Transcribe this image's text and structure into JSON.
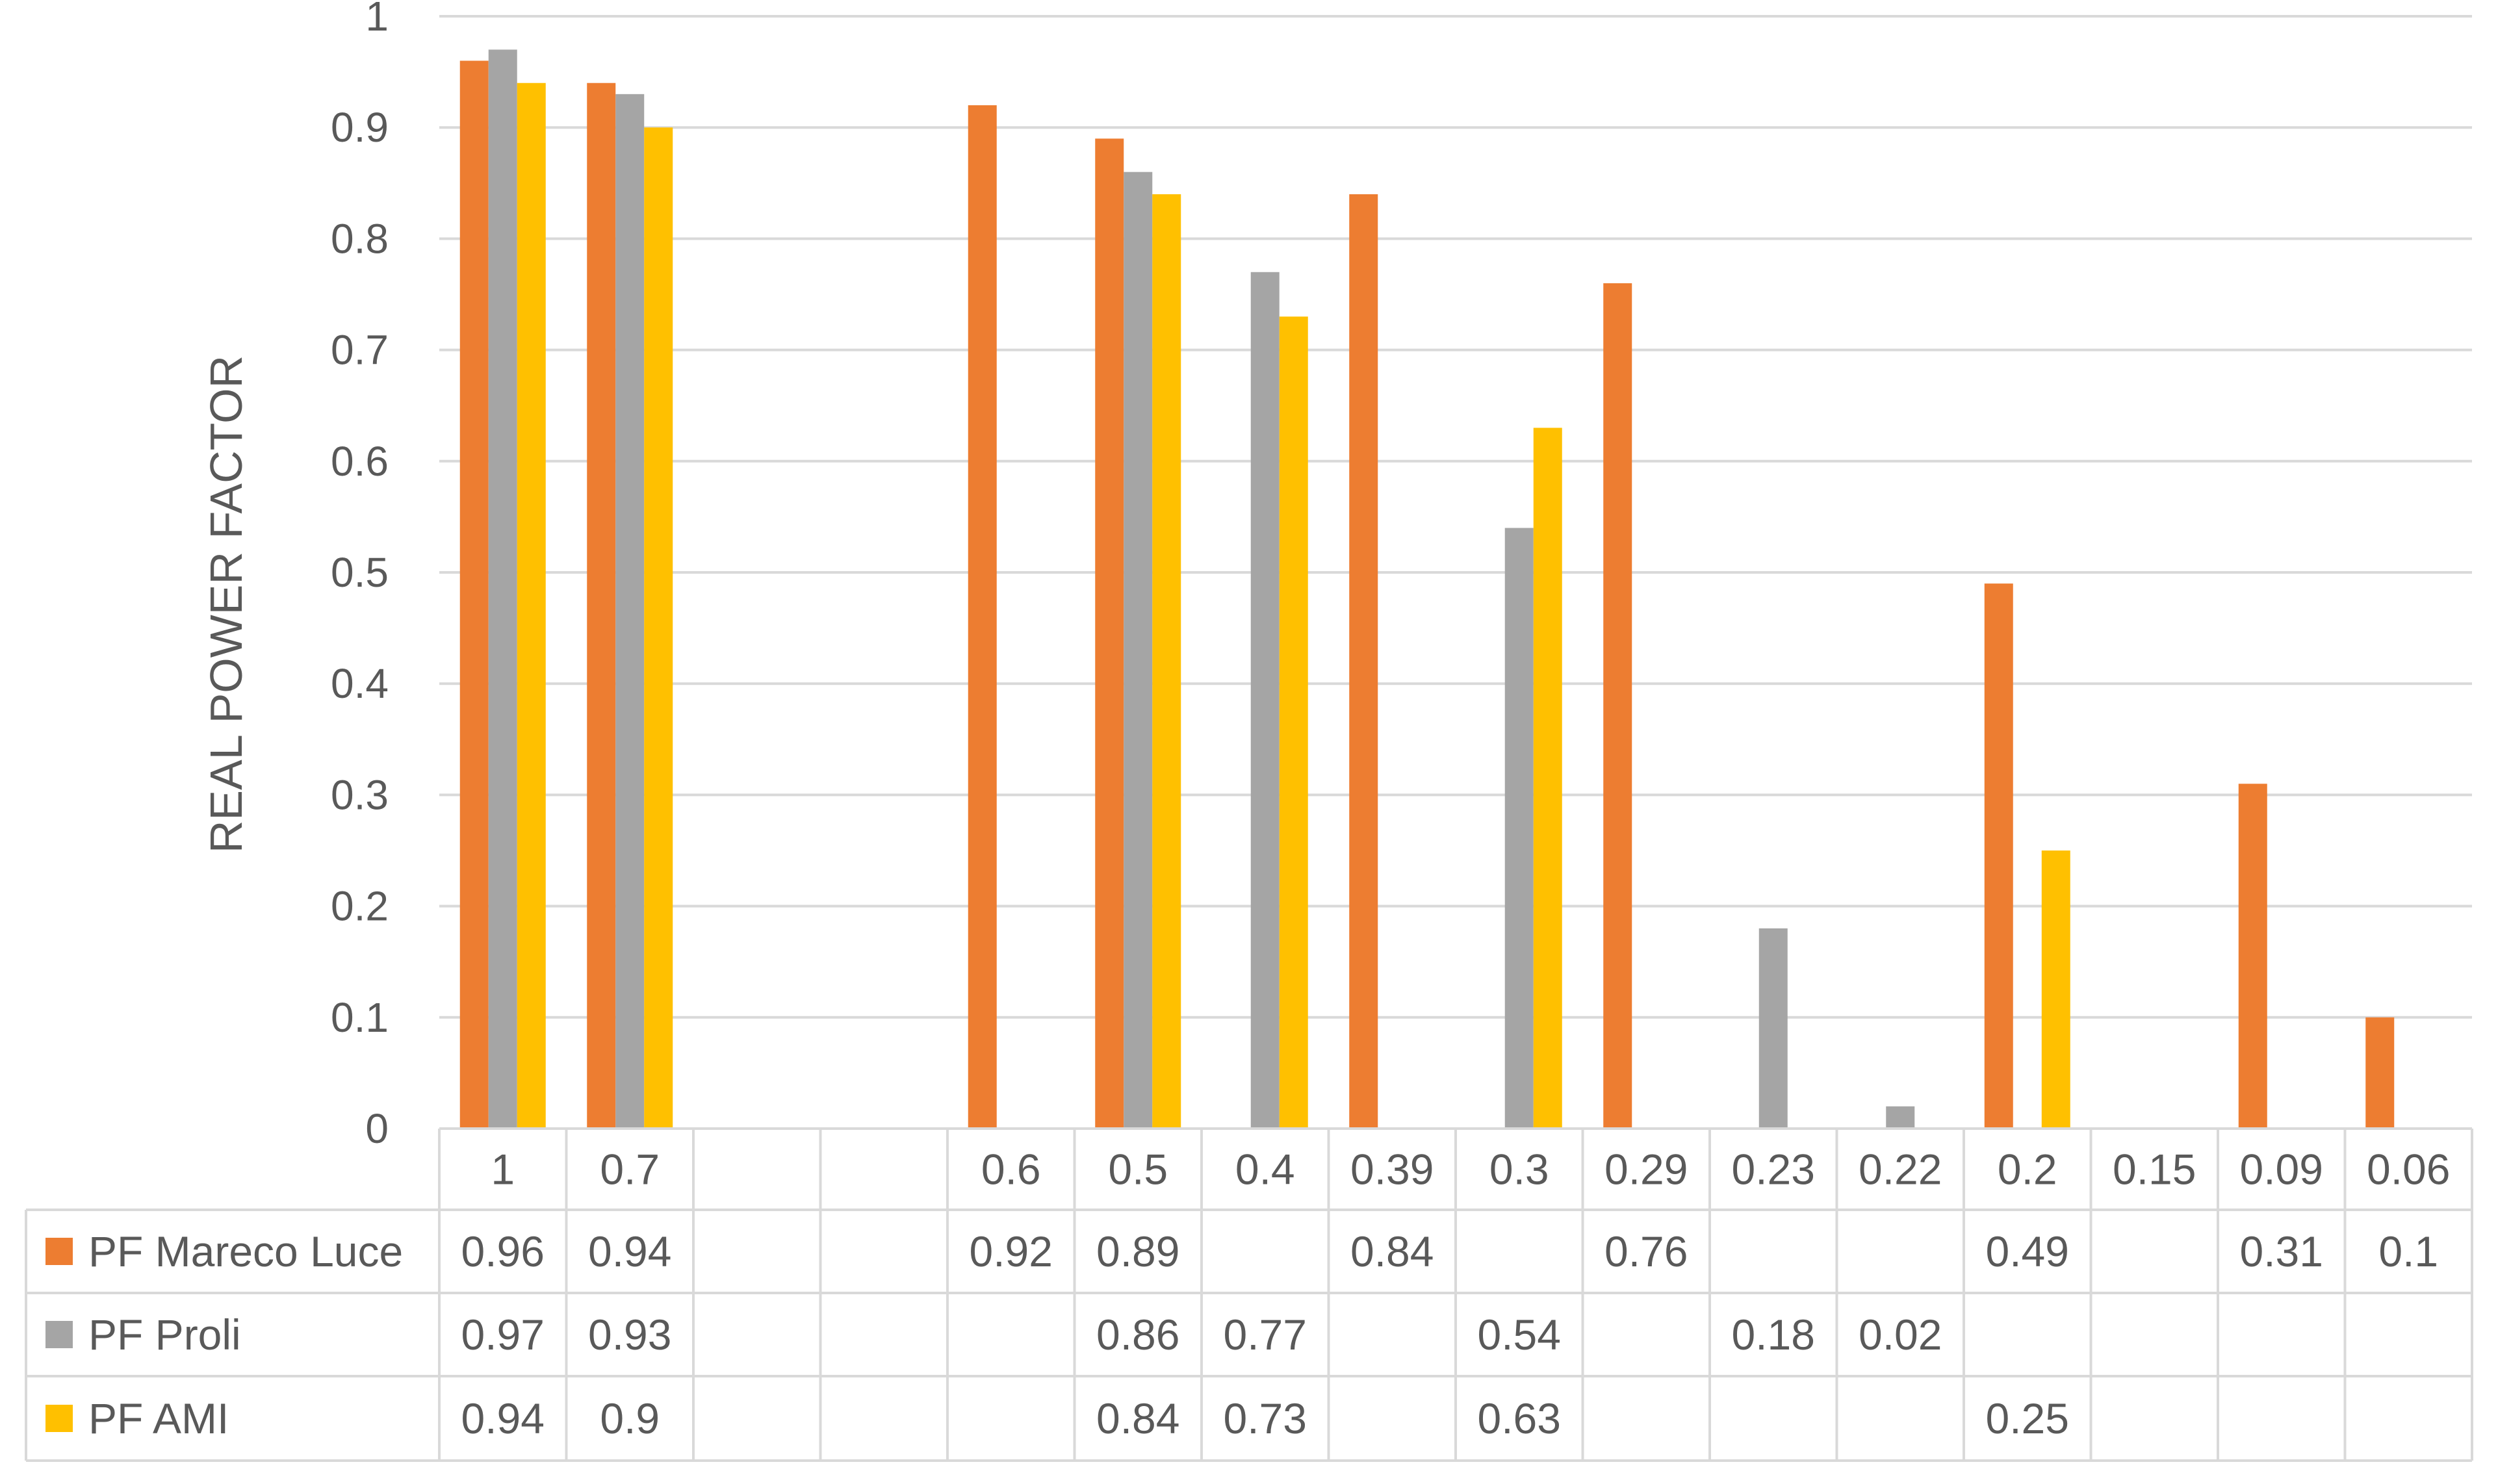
{
  "chart_data": {
    "type": "bar",
    "title": "",
    "xlabel": "",
    "ylabel": "REAL POWER FACTOR",
    "ylim": [
      0,
      1
    ],
    "yticks": [
      "0",
      "0.1",
      "0.2",
      "0.3",
      "0.4",
      "0.5",
      "0.6",
      "0.7",
      "0.8",
      "0.9",
      "1"
    ],
    "grid": true,
    "legend": "data-table",
    "categories": [
      "1",
      "0.7",
      "",
      "",
      "0.6",
      "0.5",
      "0.4",
      "0.39",
      "0.3",
      "0.29",
      "0.23",
      "0.22",
      "0.2",
      "0.15",
      "0.09",
      "0.06"
    ],
    "series": [
      {
        "name": "PF Mareco Luce",
        "color": "#ED7D31",
        "values": [
          0.96,
          0.94,
          null,
          null,
          0.92,
          0.89,
          null,
          0.84,
          null,
          0.76,
          null,
          null,
          0.49,
          null,
          0.31,
          0.1
        ]
      },
      {
        "name": "PF Proli",
        "color": "#A5A5A5",
        "values": [
          0.97,
          0.93,
          null,
          null,
          null,
          0.86,
          0.77,
          null,
          0.54,
          null,
          0.18,
          0.02,
          null,
          null,
          null,
          null
        ]
      },
      {
        "name": "PF AMI",
        "color": "#FFC000",
        "values": [
          0.94,
          0.9,
          null,
          null,
          null,
          0.84,
          0.73,
          null,
          0.63,
          null,
          null,
          null,
          0.25,
          null,
          null,
          null
        ]
      }
    ]
  }
}
